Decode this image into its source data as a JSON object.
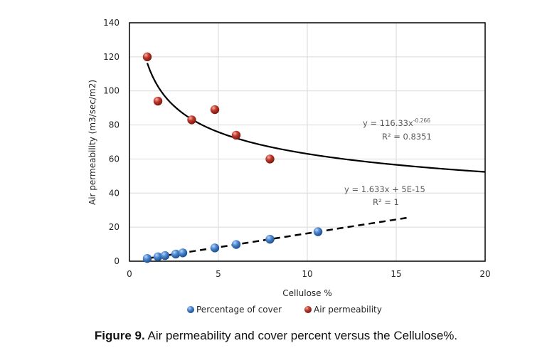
{
  "chart_data": {
    "type": "scatter",
    "title": "",
    "xlabel": "Cellulose %",
    "ylabel": "Air permeability (m3/sec/m2)",
    "xlim": [
      0,
      20
    ],
    "ylim": [
      0,
      140
    ],
    "xticks": [
      0,
      5,
      10,
      15,
      20
    ],
    "yticks": [
      0,
      20,
      40,
      60,
      80,
      100,
      120,
      140
    ],
    "grid": true,
    "legend_position": "bottom",
    "series": [
      {
        "name": "Percentage of cover",
        "color": "#4a86d0",
        "x": [
          1.0,
          1.6,
          2.0,
          2.6,
          3.0,
          4.8,
          6.0,
          7.9,
          10.6
        ],
        "y": [
          1.6,
          2.6,
          3.3,
          4.2,
          4.9,
          7.8,
          9.8,
          12.9,
          17.3
        ],
        "trendline": {
          "type": "linear",
          "style": "dashed",
          "slope": 1.633,
          "intercept": 0,
          "x_range": [
            1.0,
            15.6
          ],
          "equation": "y = 1.633x + 5E-15",
          "r2_label": "R² = 1"
        }
      },
      {
        "name": "Air permeability",
        "color": "#c0392b",
        "x": [
          1.0,
          1.6,
          3.5,
          4.8,
          6.0,
          7.9
        ],
        "y": [
          120,
          94,
          83,
          89,
          74,
          60
        ],
        "trendline": {
          "type": "power",
          "style": "solid",
          "coefficient": 116.33,
          "exponent": -0.266,
          "x_range": [
            1.0,
            20
          ],
          "equation_base": "y = 116.33x",
          "equation_exp": "-0.266",
          "r2_label": "R² = 0.8351"
        }
      }
    ]
  },
  "caption": {
    "label": "Figure 9.",
    "text": " Air permeability and cover percent versus the Cellulose%."
  }
}
